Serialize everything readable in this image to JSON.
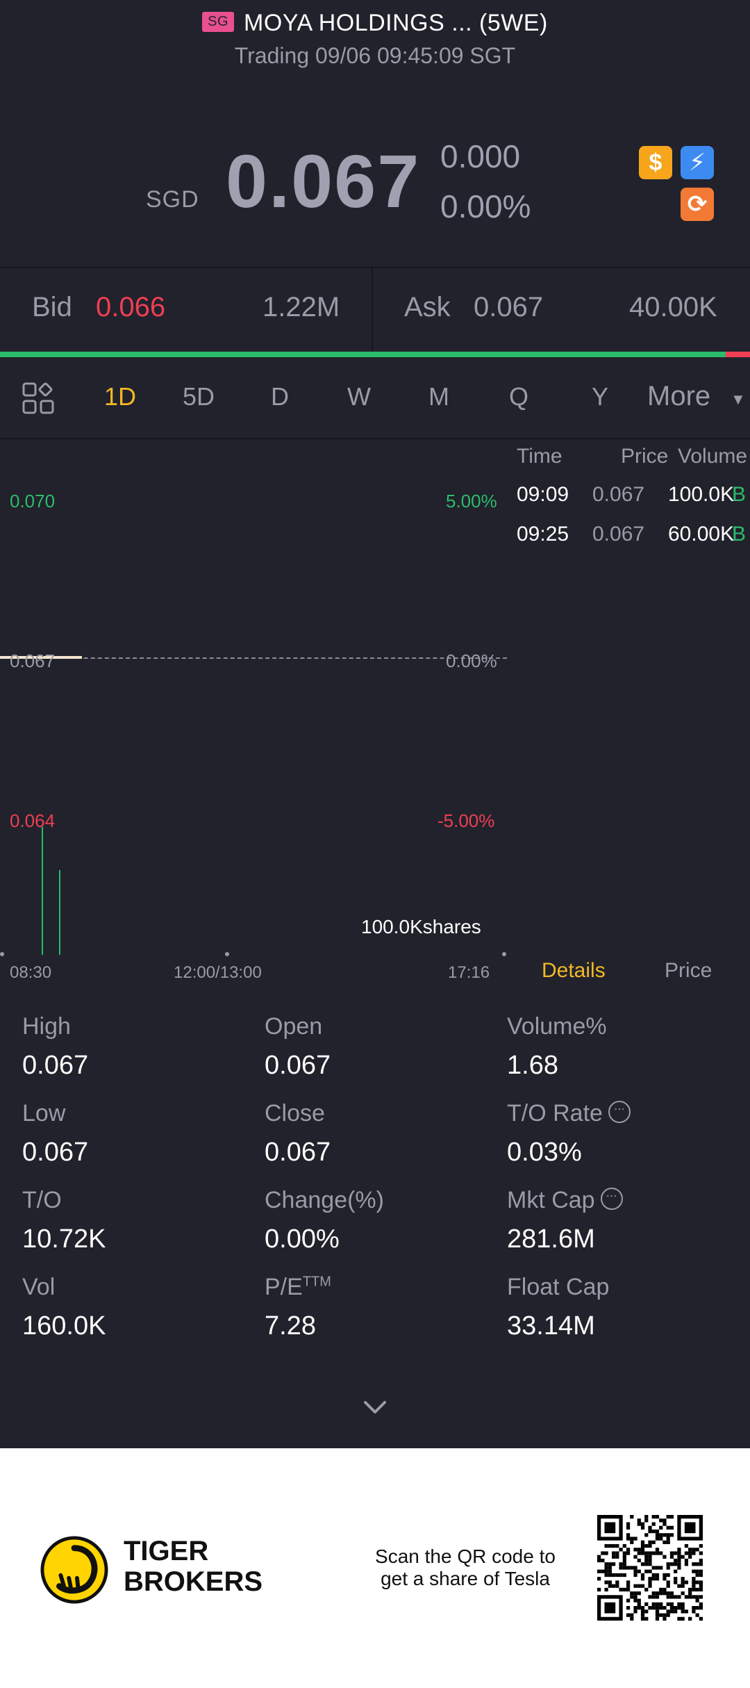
{
  "header": {
    "market_badge": "SG",
    "title": "MOYA HOLDINGS ... (5WE)",
    "subtitle": "Trading 09/06 09:45:09 SGT"
  },
  "quote": {
    "currency": "SGD",
    "price": "0.067",
    "change": "0.000",
    "change_pct": "0.00%",
    "badges": [
      "dollar-icon",
      "flash-icon",
      "margin-icon"
    ],
    "badge_glyphs": {
      "dollar": "$",
      "flash": "⚡",
      "margin": "⟳"
    }
  },
  "bid_ask": {
    "bid_label": "Bid",
    "bid_price": "0.066",
    "bid_size": "1.22M",
    "ask_label": "Ask",
    "ask_price": "0.067",
    "ask_size": "40.00K",
    "bid_ratio": 0.968
  },
  "tabs": {
    "items": [
      "1D",
      "5D",
      "D",
      "W",
      "M",
      "Q",
      "Y"
    ],
    "active": "1D",
    "more": "More",
    "more_caret": "▼"
  },
  "chart": {
    "price_high": "0.070",
    "price_mid": "0.067",
    "price_low": "0.064",
    "pct_high": "5.00%",
    "pct_mid": "0.00%",
    "pct_low": "-5.00%",
    "volume_label": "100.0Kshares",
    "time_ticks": [
      "08:30",
      "12:00/13:00",
      "17:16"
    ]
  },
  "trades": {
    "headers": {
      "time": "Time",
      "price": "Price",
      "volume": "Volume"
    },
    "rows": [
      {
        "time": "09:09",
        "price": "0.067",
        "volume": "100.0K",
        "side": "B"
      },
      {
        "time": "09:25",
        "price": "0.067",
        "volume": "60.00K",
        "side": "B"
      }
    ]
  },
  "detail_tabs": {
    "details": "Details",
    "price": "Price"
  },
  "stats": [
    {
      "label": "High",
      "value": "0.067"
    },
    {
      "label": "Open",
      "value": "0.067"
    },
    {
      "label": "Volume%",
      "value": "1.68"
    },
    {
      "label": "Low",
      "value": "0.067"
    },
    {
      "label": "Close",
      "value": "0.067"
    },
    {
      "label": "T/O Rate",
      "value": "0.03%"
    },
    {
      "label": "T/O",
      "value": "10.72K"
    },
    {
      "label": "Change(%)",
      "value": "0.00%"
    },
    {
      "label": "Mkt Cap",
      "value": "281.6M"
    },
    {
      "label": "Vol",
      "value": "160.0K"
    },
    {
      "label": "P/E",
      "label_sup": "TTM",
      "value": "7.28"
    },
    {
      "label": "Float Cap",
      "value": "33.14M"
    }
  ],
  "info_glyph": "⋯",
  "footer": {
    "brand_line1": "TIGER",
    "brand_line2": "BROKERS",
    "scan_line1": "Scan the QR code to",
    "scan_line2": "get a share of Tesla"
  },
  "colors": {
    "background": "#21222b",
    "up": "#2bbb6c",
    "down": "#f03e55",
    "accent": "#f2b826",
    "muted": "#9a9ba6"
  }
}
